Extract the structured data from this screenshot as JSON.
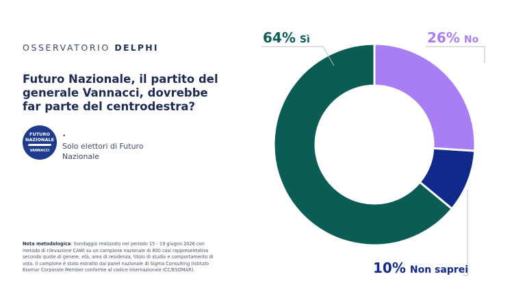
{
  "brand": {
    "name": "OSSERVATORIO",
    "highlight": "DELPHI"
  },
  "question": "Futuro Nazionale, il partito del generale Vannacci, dovrebbe far parte del centrodestra?",
  "logo": {
    "line1": "FUTURO",
    "line2": "NAZIONALE",
    "line3": "VANNACCI"
  },
  "subtitle": "Solo elettori di Futuro Nazionale",
  "note": {
    "label": "Nota metodologica",
    "text": "Sondaggio realizzato nel periodo 15 - 19 giugno 2026 con metodo di rilevazione CAWI su un campione nazionale di 800 casi rappresentativo secondo quote di genere, età, area di residenza, titolo di studio e comportamento di voto. Il campione è stato estratto dal panel nazionale di Sigma Consulting (Istituto Esomar Corporate Member conforme al codice internazionale ICC/ESOMAR)."
  },
  "chart_data": {
    "type": "pie",
    "style": "donut",
    "title": "",
    "slices": [
      {
        "label": "No",
        "value": 26,
        "display": "26%",
        "color": "#a97ef5"
      },
      {
        "label": "Non saprei",
        "value": 10,
        "display": "10%",
        "color": "#0f2a8a"
      },
      {
        "label": "Sì",
        "value": 64,
        "display": "64%",
        "color": "#0b5c54"
      }
    ]
  }
}
